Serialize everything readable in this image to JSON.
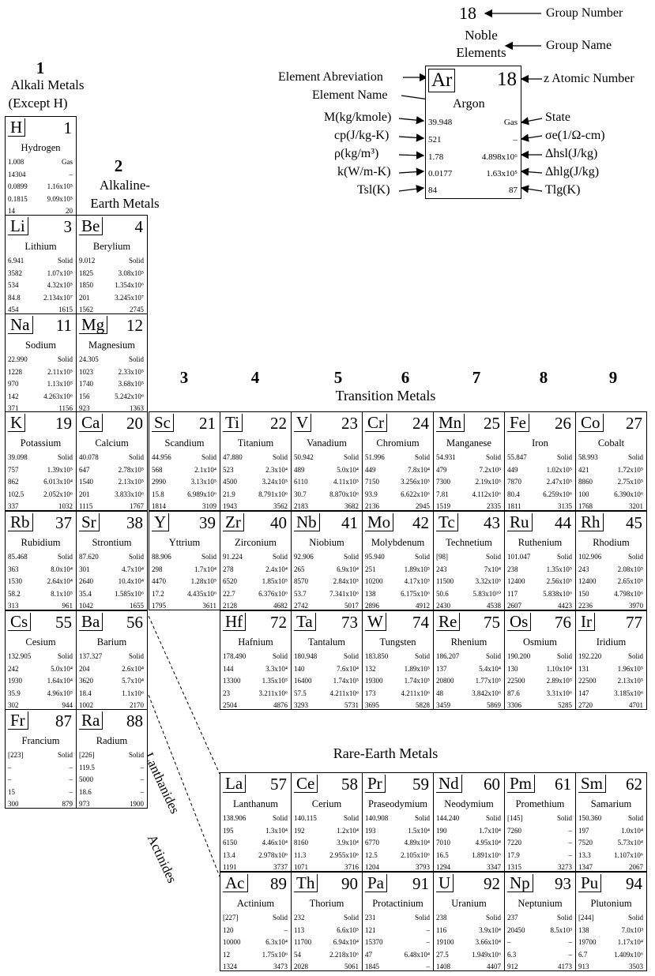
{
  "legend": {
    "group_number": "18",
    "group_number_label": "Group Number",
    "group_name": "Noble Elements",
    "group_name_label": "Group Name",
    "element_abbrev_label": "Element Abreviation",
    "element_name_label": "Element Name",
    "atomic_number_label": "z  Atomic Number",
    "state_label": "State",
    "M_label": "M(kg/kmole)",
    "cp_label": "cp(J/kg-K)",
    "rho_label": "ρ(kg/m³)",
    "k_label": "k(W/m-K)",
    "Tsl_label": "Tsl(K)",
    "sigma_label": "σe(1/Ω-cm)",
    "hsl_label": "Δhsl(J/kg)",
    "hlg_label": "Δhlg(J/kg)",
    "Tlg_label": "Tlg(K)",
    "example": {
      "sym": "Ar",
      "z": "18",
      "name": "Argon",
      "M": "39.948",
      "state": "Gas",
      "cp": "521",
      "sigma": "–",
      "rho": "1.78",
      "hsl": "4.898x10⁶",
      "k": "0.0177",
      "hlg": "1.63x10⁵",
      "Tsl": "84",
      "Tlg": "87"
    }
  },
  "groups": {
    "g1": {
      "number": "1",
      "name1": "Alkali Metals",
      "name2": "(Except H)"
    },
    "g2": {
      "number": "2",
      "name1": "Alkaline-",
      "name2": "Earth Metals"
    },
    "g3": "3",
    "g4": "4",
    "g5": "5",
    "g6": "6",
    "g7": "7",
    "g8": "8",
    "g9": "9",
    "transition": "Transition Metals",
    "rare_earth": "Rare-Earth Metals",
    "lanthanides": "Lanthanides",
    "actinides": "Actinides"
  },
  "elements": [
    {
      "sym": "H",
      "z": "1",
      "name": "Hydrogen",
      "r": [
        [
          "1.008",
          "Gas"
        ],
        [
          "14304",
          "–"
        ],
        [
          "0.0899",
          "1.16x10⁵"
        ],
        [
          "0.1815",
          "9.09x10⁵"
        ],
        [
          "14",
          "20"
        ]
      ]
    },
    {
      "sym": "Li",
      "z": "3",
      "name": "Lithium",
      "r": [
        [
          "6.941",
          "Solid"
        ],
        [
          "3582",
          "1.07x10⁵"
        ],
        [
          "534",
          "4.32x10⁵"
        ],
        [
          "84.8",
          "2.134x10⁷"
        ],
        [
          "454",
          "1615"
        ]
      ]
    },
    {
      "sym": "Be",
      "z": "4",
      "name": "Berylium",
      "r": [
        [
          "9.012",
          "Solid"
        ],
        [
          "1825",
          "3.08x10⁵"
        ],
        [
          "1850",
          "1.354x10⁶"
        ],
        [
          "201",
          "3.245x10⁷"
        ],
        [
          "1562",
          "2745"
        ]
      ]
    },
    {
      "sym": "Na",
      "z": "11",
      "name": "Sodium",
      "r": [
        [
          "22.990",
          "Solid"
        ],
        [
          "1228",
          "2.11x10⁵"
        ],
        [
          "970",
          "1.13x10⁵"
        ],
        [
          "142",
          "4.263x10⁶"
        ],
        [
          "371",
          "1156"
        ]
      ]
    },
    {
      "sym": "Mg",
      "z": "12",
      "name": "Magnesium",
      "r": [
        [
          "24.305",
          "Solid"
        ],
        [
          "1023",
          "2.33x10⁵"
        ],
        [
          "1740",
          "3.68x10⁵"
        ],
        [
          "156",
          "5.242x10⁶"
        ],
        [
          "923",
          "1363"
        ]
      ]
    },
    {
      "sym": "K",
      "z": "19",
      "name": "Potassium",
      "r": [
        [
          "39.098",
          "Solid"
        ],
        [
          "757",
          "1.39x10⁵"
        ],
        [
          "862",
          "6.013x10⁴"
        ],
        [
          "102.5",
          "2.052x10⁶"
        ],
        [
          "337",
          "1032"
        ]
      ]
    },
    {
      "sym": "Ca",
      "z": "20",
      "name": "Calcium",
      "r": [
        [
          "40.078",
          "Solid"
        ],
        [
          "647",
          "2.78x10⁵"
        ],
        [
          "1540",
          "2.13x10⁵"
        ],
        [
          "201",
          "3.833x10⁶"
        ],
        [
          "1115",
          "1767"
        ]
      ]
    },
    {
      "sym": "Sc",
      "z": "21",
      "name": "Scandium",
      "r": [
        [
          "44.956",
          "Solid"
        ],
        [
          "568",
          "2.1x10⁴"
        ],
        [
          "2990",
          "3.13x10⁵"
        ],
        [
          "15.8",
          "6.989x10⁶"
        ],
        [
          "1814",
          "3109"
        ]
      ]
    },
    {
      "sym": "Ti",
      "z": "22",
      "name": "Titanium",
      "r": [
        [
          "47.880",
          "Solid"
        ],
        [
          "523",
          "2.3x10⁴"
        ],
        [
          "4500",
          "3.24x10⁵"
        ],
        [
          "21.9",
          "8.791x10⁶"
        ],
        [
          "1943",
          "3562"
        ]
      ]
    },
    {
      "sym": "V",
      "z": "23",
      "name": "Vanadium",
      "r": [
        [
          "50.942",
          "Solid"
        ],
        [
          "489",
          "5.0x10⁴"
        ],
        [
          "6110",
          "4.11x10⁵"
        ],
        [
          "30.7",
          "8.870x10⁶"
        ],
        [
          "2183",
          "3682"
        ]
      ]
    },
    {
      "sym": "Cr",
      "z": "24",
      "name": "Chromium",
      "r": [
        [
          "51.996",
          "Solid"
        ],
        [
          "449",
          "7.8x10⁴"
        ],
        [
          "7150",
          "3.256x10⁵"
        ],
        [
          "93.9",
          "6.622x10⁶"
        ],
        [
          "2136",
          "2945"
        ]
      ]
    },
    {
      "sym": "Mn",
      "z": "25",
      "name": "Manganese",
      "r": [
        [
          "54.931",
          "Solid"
        ],
        [
          "479",
          "7.2x10³"
        ],
        [
          "7300",
          "2.19x10⁵"
        ],
        [
          "7.81",
          "4.112x10⁶"
        ],
        [
          "1519",
          "2335"
        ]
      ]
    },
    {
      "sym": "Fe",
      "z": "26",
      "name": "Iron",
      "r": [
        [
          "55.847",
          "Solid"
        ],
        [
          "449",
          "1.02x10⁵"
        ],
        [
          "7870",
          "2.47x10⁵"
        ],
        [
          "80.4",
          "6.259x10⁶"
        ],
        [
          "1811",
          "3135"
        ]
      ]
    },
    {
      "sym": "Co",
      "z": "27",
      "name": "Cobalt",
      "r": [
        [
          "58.993",
          "Solid"
        ],
        [
          "421",
          "1.72x10⁵"
        ],
        [
          "8860",
          "2.75x10⁵"
        ],
        [
          "100",
          "6.390x10⁶"
        ],
        [
          "1768",
          "3201"
        ]
      ]
    },
    {
      "sym": "Rb",
      "z": "37",
      "name": "Rubidium",
      "r": [
        [
          "85.468",
          "Solid"
        ],
        [
          "363",
          "8.0x10⁴"
        ],
        [
          "1530",
          "2.64x10⁴"
        ],
        [
          "58.2",
          "8.1x10⁵"
        ],
        [
          "313",
          "961"
        ]
      ]
    },
    {
      "sym": "Sr",
      "z": "38",
      "name": "Strontium",
      "r": [
        [
          "87.620",
          "Solid"
        ],
        [
          "301",
          "4.7x10⁴"
        ],
        [
          "2640",
          "10.4x10⁴"
        ],
        [
          "35.4",
          "1.585x10⁶"
        ],
        [
          "1042",
          "1655"
        ]
      ]
    },
    {
      "sym": "Y",
      "z": "39",
      "name": "Yttrium",
      "r": [
        [
          "88.906",
          "Solid"
        ],
        [
          "298",
          "1.7x10⁴"
        ],
        [
          "4470",
          "1.28x10⁵"
        ],
        [
          "17.2",
          "4.435x10⁶"
        ],
        [
          "1795",
          "3611"
        ]
      ]
    },
    {
      "sym": "Zr",
      "z": "40",
      "name": "Zirconium",
      "r": [
        [
          "91.224",
          "Solid"
        ],
        [
          "278",
          "2.4x10⁴"
        ],
        [
          "6520",
          "1.85x10⁵"
        ],
        [
          "22.7",
          "6.376x10⁶"
        ],
        [
          "2128",
          "4682"
        ]
      ]
    },
    {
      "sym": "Nb",
      "z": "41",
      "name": "Niobium",
      "r": [
        [
          "92.906",
          "Solid"
        ],
        [
          "265",
          "6.9x10⁴"
        ],
        [
          "8570",
          "2.84x10⁵"
        ],
        [
          "53.7",
          "7.341x10⁶"
        ],
        [
          "2742",
          "5017"
        ]
      ]
    },
    {
      "sym": "Mo",
      "z": "42",
      "name": "Molybdenum",
      "r": [
        [
          "95.940",
          "Solid"
        ],
        [
          "251",
          "1.89x10⁵"
        ],
        [
          "10200",
          "4.17x10⁵"
        ],
        [
          "138",
          "6.175x10⁶"
        ],
        [
          "2896",
          "4912"
        ]
      ]
    },
    {
      "sym": "Tc",
      "z": "43",
      "name": "Technetium",
      "r": [
        [
          "[98]",
          "Solid"
        ],
        [
          "243",
          "7x10⁴"
        ],
        [
          "11500",
          "3.32x10⁵"
        ],
        [
          "50.6",
          "5.83x10¹⁰"
        ],
        [
          "2430",
          "4538"
        ]
      ]
    },
    {
      "sym": "Ru",
      "z": "44",
      "name": "Ruthenium",
      "r": [
        [
          "101.047",
          "Solid"
        ],
        [
          "238",
          "1.35x10⁵"
        ],
        [
          "12400",
          "2.56x10⁵"
        ],
        [
          "117",
          "5.838x10⁶"
        ],
        [
          "2607",
          "4423"
        ]
      ]
    },
    {
      "sym": "Rh",
      "z": "45",
      "name": "Rhodium",
      "r": [
        [
          "102.906",
          "Solid"
        ],
        [
          "243",
          "2.08x10⁵"
        ],
        [
          "12400",
          "2.65x10⁵"
        ],
        [
          "150",
          "4.798x10⁶"
        ],
        [
          "2236",
          "3970"
        ]
      ]
    },
    {
      "sym": "Cs",
      "z": "55",
      "name": "Cesium",
      "r": [
        [
          "132.905",
          "Solid"
        ],
        [
          "242",
          "5.0x10⁴"
        ],
        [
          "1930",
          "1.64x10⁴"
        ],
        [
          "35.9",
          "4.96x10⁵"
        ],
        [
          "302",
          "944"
        ]
      ]
    },
    {
      "sym": "Ba",
      "z": "56",
      "name": "Barium",
      "r": [
        [
          "137.327",
          "Solid"
        ],
        [
          "204",
          "2.6x10⁴"
        ],
        [
          "3620",
          "5.7x10⁴"
        ],
        [
          "18.4",
          "1.1x10⁶"
        ],
        [
          "1002",
          "2170"
        ]
      ]
    },
    {
      "sym": "Hf",
      "z": "72",
      "name": "Hafnium",
      "r": [
        [
          "178.490",
          "Solid"
        ],
        [
          "144",
          "3.3x10⁴"
        ],
        [
          "13300",
          "1.35x10⁵"
        ],
        [
          "23",
          "3.211x10⁶"
        ],
        [
          "2504",
          "4876"
        ]
      ]
    },
    {
      "sym": "Ta",
      "z": "73",
      "name": "Tantalum",
      "r": [
        [
          "180.948",
          "Solid"
        ],
        [
          "140",
          "7.6x10⁴"
        ],
        [
          "16400",
          "1.74x10⁵"
        ],
        [
          "57.5",
          "4.211x10⁶"
        ],
        [
          "3293",
          "5731"
        ]
      ]
    },
    {
      "sym": "W",
      "z": "74",
      "name": "Tungsten",
      "r": [
        [
          "183.850",
          "Solid"
        ],
        [
          "132",
          "1.89x10⁵"
        ],
        [
          "19300",
          "1.74x10⁵"
        ],
        [
          "173",
          "4.211x10⁶"
        ],
        [
          "3695",
          "5828"
        ]
      ]
    },
    {
      "sym": "Re",
      "z": "75",
      "name": "Rhenium",
      "r": [
        [
          "186.207",
          "Solid"
        ],
        [
          "137",
          "5.4x10⁴"
        ],
        [
          "20800",
          "1.77x10⁵"
        ],
        [
          "48",
          "3.842x10⁶"
        ],
        [
          "3459",
          "5869"
        ]
      ]
    },
    {
      "sym": "Os",
      "z": "76",
      "name": "Osmium",
      "r": [
        [
          "190.200",
          "Solid"
        ],
        [
          "130",
          "1.10x10⁴"
        ],
        [
          "22500",
          "2.89x10⁵"
        ],
        [
          "87.6",
          "3.31x10⁶"
        ],
        [
          "3306",
          "5285"
        ]
      ]
    },
    {
      "sym": "Ir",
      "z": "77",
      "name": "Iridium",
      "r": [
        [
          "192.220",
          "Solid"
        ],
        [
          "131",
          "1.96x10⁵"
        ],
        [
          "22500",
          "2.13x10⁵"
        ],
        [
          "147",
          "3.185x10⁶"
        ],
        [
          "2720",
          "4701"
        ]
      ]
    },
    {
      "sym": "Fr",
      "z": "87",
      "name": "Francium",
      "r": [
        [
          "[223]",
          "Solid"
        ],
        [
          "–",
          "–"
        ],
        [
          "–",
          "–"
        ],
        [
          "15",
          "–"
        ],
        [
          "300",
          "879"
        ]
      ]
    },
    {
      "sym": "Ra",
      "z": "88",
      "name": "Radium",
      "r": [
        [
          "[226]",
          "Solid"
        ],
        [
          "119.5",
          "–"
        ],
        [
          "5000",
          "–"
        ],
        [
          "18.6",
          "–"
        ],
        [
          "973",
          "1900"
        ]
      ]
    },
    {
      "sym": "La",
      "z": "57",
      "name": "Lanthanum",
      "r": [
        [
          "138.906",
          "Solid"
        ],
        [
          "195",
          "1.3x10⁴"
        ],
        [
          "6150",
          "4.46x10⁴"
        ],
        [
          "13.4",
          "2.978x10⁶"
        ],
        [
          "1191",
          "3737"
        ]
      ]
    },
    {
      "sym": "Ce",
      "z": "58",
      "name": "Cerium",
      "r": [
        [
          "140.115",
          "Solid"
        ],
        [
          "192",
          "1.2x10⁴"
        ],
        [
          "8160",
          "3.9x10⁴"
        ],
        [
          "11.3",
          "2.955x10⁶"
        ],
        [
          "1071",
          "3716"
        ]
      ]
    },
    {
      "sym": "Pr",
      "z": "59",
      "name": "Praseodymium",
      "r": [
        [
          "140.908",
          "Solid"
        ],
        [
          "193",
          "1.5x10⁴"
        ],
        [
          "6770",
          "4.89x10⁴"
        ],
        [
          "12.5",
          "2.105x10⁶"
        ],
        [
          "1204",
          "3793"
        ]
      ]
    },
    {
      "sym": "Nd",
      "z": "60",
      "name": "Neodymium",
      "r": [
        [
          "144.240",
          "Solid"
        ],
        [
          "190",
          "1.7x10⁴"
        ],
        [
          "7010",
          "4.95x10⁴"
        ],
        [
          "16.5",
          "1.891x10⁶"
        ],
        [
          "1294",
          "3347"
        ]
      ]
    },
    {
      "sym": "Pm",
      "z": "61",
      "name": "Promethium",
      "r": [
        [
          "[145]",
          "Solid"
        ],
        [
          "7260",
          "–"
        ],
        [
          "7220",
          "–"
        ],
        [
          "17.9",
          "–"
        ],
        [
          "1315",
          "3273"
        ]
      ]
    },
    {
      "sym": "Sm",
      "z": "62",
      "name": "Samarium",
      "r": [
        [
          "150.360",
          "Solid"
        ],
        [
          "197",
          "1.0x10⁴"
        ],
        [
          "7520",
          "5.73x10⁴"
        ],
        [
          "13.3",
          "1.107x10⁶"
        ],
        [
          "1347",
          "2067"
        ]
      ]
    },
    {
      "sym": "Ac",
      "z": "89",
      "name": "Actinium",
      "r": [
        [
          "[227]",
          "Solid"
        ],
        [
          "120",
          "–"
        ],
        [
          "10000",
          "6.3x10⁴"
        ],
        [
          "12",
          "1.75x10⁶"
        ],
        [
          "1324",
          "3473"
        ]
      ]
    },
    {
      "sym": "Th",
      "z": "90",
      "name": "Thorium",
      "r": [
        [
          "232",
          "Solid"
        ],
        [
          "113",
          "6.6x10⁵"
        ],
        [
          "11700",
          "6.94x10⁴"
        ],
        [
          "54",
          "2.218x10⁶"
        ],
        [
          "2028",
          "5061"
        ]
      ]
    },
    {
      "sym": "Pa",
      "z": "91",
      "name": "Protactinium",
      "r": [
        [
          "231",
          "Solid"
        ],
        [
          "121",
          "–"
        ],
        [
          "15370",
          "–"
        ],
        [
          "47",
          "6.48x10⁴"
        ],
        [
          "1845",
          "–"
        ]
      ]
    },
    {
      "sym": "U",
      "z": "92",
      "name": "Uranium",
      "r": [
        [
          "238",
          "Solid"
        ],
        [
          "116",
          "3.9x10⁴"
        ],
        [
          "19100",
          "3.66x10⁴"
        ],
        [
          "27.5",
          "1.949x10⁶"
        ],
        [
          "1408",
          "4407"
        ]
      ]
    },
    {
      "sym": "Np",
      "z": "93",
      "name": "Neptunium",
      "r": [
        [
          "237",
          "Solid"
        ],
        [
          "20450",
          "8.5x10³"
        ],
        [
          "–",
          "–"
        ],
        [
          "6.3",
          "–"
        ],
        [
          "912",
          "4173"
        ]
      ]
    },
    {
      "sym": "Pu",
      "z": "94",
      "name": "Plutonium",
      "r": [
        [
          "[244]",
          "Solid"
        ],
        [
          "138",
          "7.0x10³"
        ],
        [
          "19700",
          "1.17x10⁴"
        ],
        [
          "6.7",
          "1.409x10⁶"
        ],
        [
          "913",
          "3503"
        ]
      ]
    }
  ]
}
